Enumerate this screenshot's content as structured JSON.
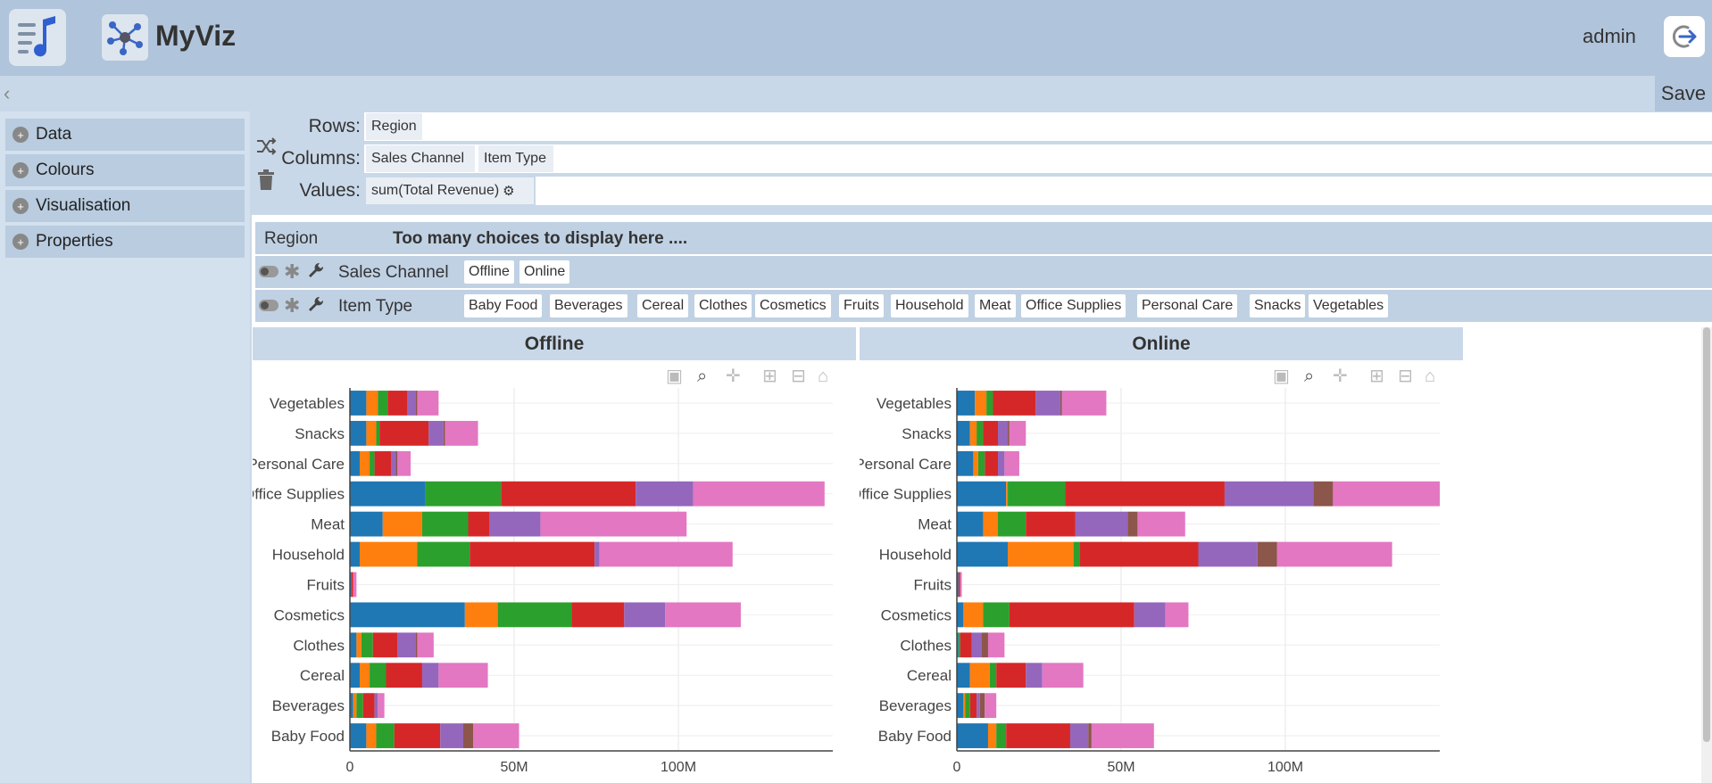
{
  "header": {
    "app_title": "MyViz",
    "user": "admin",
    "save_label": "Save"
  },
  "sidebar": {
    "items": [
      {
        "label": "Data"
      },
      {
        "label": "Colours"
      },
      {
        "label": "Visualisation"
      },
      {
        "label": "Properties"
      }
    ]
  },
  "shelves": {
    "rows_label": "Rows:",
    "columns_label": "Columns:",
    "values_label": "Values:",
    "rows": [
      "Region"
    ],
    "columns": [
      "Sales Channel",
      "Item Type"
    ],
    "values": [
      "sum(Total Revenue)"
    ]
  },
  "filters": {
    "region": {
      "label": "Region",
      "message": "Too many choices to display here ...."
    },
    "sales_channel": {
      "label": "Sales Channel",
      "options": [
        "Offline",
        "Online"
      ]
    },
    "item_type": {
      "label": "Item Type",
      "options": [
        "Baby Food",
        "Beverages",
        "Cereal",
        "Clothes",
        "Cosmetics",
        "Fruits",
        "Household",
        "Meat",
        "Office Supplies",
        "Personal Care",
        "Snacks",
        "Vegetables"
      ]
    }
  },
  "colors": {
    "accent": "#3a66c4",
    "segments": [
      "#1f77b4",
      "#ff7f0e",
      "#2ca02c",
      "#d62728",
      "#9467bd",
      "#8c564b",
      "#e377c2"
    ]
  },
  "chart_data": [
    {
      "type": "bar",
      "title": "Offline",
      "orientation": "horizontal",
      "stacked": true,
      "categories": [
        "Vegetables",
        "Snacks",
        "Personal Care",
        "Office Supplies",
        "Meat",
        "Household",
        "Fruits",
        "Cosmetics",
        "Clothes",
        "Cereal",
        "Beverages",
        "Baby Food"
      ],
      "series": [
        {
          "values": [
            5,
            5,
            3,
            23,
            10,
            3,
            0.5,
            35,
            2,
            3,
            1,
            5
          ]
        },
        {
          "values": [
            3.5,
            3,
            3,
            0,
            12,
            17.5,
            0,
            10,
            1.5,
            3,
            1,
            3
          ]
        },
        {
          "values": [
            3,
            1,
            1.5,
            23,
            14,
            16,
            0,
            22.5,
            3.5,
            5,
            2,
            5.5
          ]
        },
        {
          "values": [
            6,
            15,
            5,
            41,
            6.5,
            38,
            0.5,
            16,
            7.5,
            11,
            3.5,
            14
          ]
        },
        {
          "values": [
            2.5,
            4.5,
            1.5,
            17.5,
            15.5,
            1.5,
            0,
            12.5,
            5.5,
            5,
            1,
            7
          ]
        },
        {
          "values": [
            0.5,
            0.5,
            0.5,
            0,
            0,
            0,
            0,
            0,
            0.5,
            0,
            0,
            3
          ]
        },
        {
          "values": [
            6.5,
            10,
            4,
            40,
            44.5,
            40.5,
            1,
            23,
            5,
            15,
            2,
            14
          ]
        }
      ],
      "xlim": [
        0,
        147
      ],
      "xticks": [
        "0",
        "50M",
        "100M"
      ]
    },
    {
      "type": "bar",
      "title": "Online",
      "orientation": "horizontal",
      "stacked": true,
      "categories": [
        "Vegetables",
        "Snacks",
        "Personal Care",
        "Office Supplies",
        "Meat",
        "Household",
        "Fruits",
        "Cosmetics",
        "Clothes",
        "Cereal",
        "Beverages",
        "Baby Food"
      ],
      "series": [
        {
          "values": [
            5.5,
            4,
            5,
            15,
            8,
            15.5,
            0.5,
            2,
            0.5,
            4,
            2,
            9.5
          ]
        },
        {
          "values": [
            3.5,
            2,
            1.5,
            0.5,
            4.5,
            20,
            0,
            6,
            0,
            6,
            0.5,
            2.5
          ]
        },
        {
          "values": [
            2,
            2,
            2,
            17.5,
            8.5,
            2,
            0,
            8,
            0.5,
            2,
            1.5,
            3
          ]
        },
        {
          "values": [
            13,
            4.5,
            4,
            48.5,
            15,
            36,
            0.5,
            38,
            3.5,
            9,
            2,
            19.5
          ]
        },
        {
          "values": [
            7.5,
            3,
            2,
            27,
            16,
            18,
            0,
            9.5,
            3,
            5,
            1,
            5.5
          ]
        },
        {
          "values": [
            0.5,
            0.5,
            0,
            6,
            3,
            6,
            0,
            0,
            2,
            0,
            1.5,
            1
          ]
        },
        {
          "values": [
            13.5,
            5,
            4.5,
            32.5,
            14.5,
            35,
            0.5,
            7,
            5,
            12.5,
            3.5,
            19
          ]
        }
      ],
      "xlim": [
        0,
        147
      ],
      "xticks": [
        "0",
        "50M",
        "100M"
      ]
    }
  ]
}
